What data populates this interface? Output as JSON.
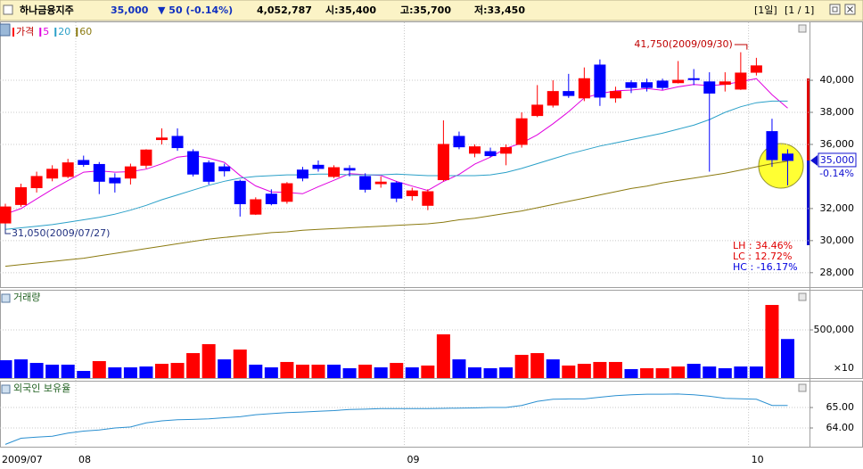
{
  "header": {
    "name": "하나금융지주",
    "price": "35,000",
    "change": "▼ 50 (-0.14%)",
    "volume": "4,052,787",
    "open": "시:35,400",
    "high": "고:35,700",
    "low": "저:33,450",
    "period": "[1일]",
    "page": "[1 / 1]"
  },
  "chart_data": [
    {
      "type": "candlestick",
      "name": "가격",
      "color_up": "#ff0000",
      "color_down": "#0000ff",
      "open": [
        31100,
        32250,
        33300,
        33900,
        34000,
        35000,
        34750,
        33900,
        33900,
        34700,
        36300,
        36500,
        35550,
        34850,
        34600,
        33700,
        31650,
        32900,
        32450,
        34400,
        34700,
        34000,
        34500,
        34000,
        33550,
        33600,
        32800,
        32200,
        33800,
        36500,
        35450,
        35550,
        35450,
        36000,
        37800,
        38450,
        39300,
        38900,
        40950,
        38900,
        39850,
        39850,
        39950,
        39850,
        40100,
        39900,
        39750,
        39450,
        40500,
        36800,
        35400
      ],
      "high": [
        32300,
        33550,
        34300,
        34700,
        35100,
        35300,
        34900,
        34200,
        34800,
        35700,
        37000,
        37000,
        35700,
        35000,
        34800,
        33800,
        32700,
        33200,
        33650,
        34600,
        35000,
        34700,
        34700,
        34200,
        34000,
        33700,
        33300,
        33200,
        37500,
        36800,
        36000,
        35800,
        36000,
        38000,
        39700,
        40000,
        40400,
        40800,
        41300,
        39600,
        40000,
        40100,
        40100,
        41200,
        40700,
        40500,
        40500,
        41750,
        41400,
        37600,
        35700
      ],
      "low": [
        31050,
        32100,
        33000,
        33700,
        33900,
        34600,
        32900,
        33000,
        33500,
        34500,
        36000,
        35600,
        34000,
        33500,
        34000,
        31500,
        31600,
        32200,
        32300,
        33700,
        34300,
        33900,
        34000,
        33000,
        33300,
        32400,
        32500,
        31900,
        33700,
        35700,
        35200,
        35200,
        34700,
        35800,
        37700,
        38300,
        38900,
        38700,
        38400,
        38600,
        39200,
        39300,
        39400,
        39800,
        39700,
        34300,
        39300,
        39400,
        40300,
        34600,
        33450
      ],
      "close": [
        32100,
        33300,
        34000,
        34450,
        34850,
        34750,
        33700,
        33600,
        34600,
        35650,
        36400,
        35800,
        34150,
        33700,
        34350,
        32300,
        32550,
        32300,
        33550,
        33900,
        34500,
        34550,
        34400,
        33200,
        33650,
        32650,
        33100,
        33050,
        36000,
        35850,
        35850,
        35300,
        35800,
        37600,
        38450,
        39300,
        39050,
        40100,
        38950,
        39300,
        39550,
        39550,
        39550,
        40000,
        40050,
        39200,
        39900,
        40450,
        40900,
        35050,
        35000
      ],
      "series": [
        {
          "name": "5",
          "color": "#e000e0",
          "values": [
            31650,
            32000,
            32600,
            33200,
            33740,
            34270,
            34350,
            34270,
            34300,
            34460,
            34790,
            35210,
            35320,
            35140,
            34880,
            34060,
            33410,
            33040,
            33010,
            32920,
            33360,
            33760,
            34180,
            34110,
            34060,
            33690,
            33400,
            33130,
            33690,
            34130,
            34770,
            35210,
            35760,
            36080,
            36600,
            37290,
            38040,
            38900,
            39170,
            39340,
            39390,
            39490,
            39380,
            39590,
            39740,
            39670,
            39740,
            39920,
            40100,
            39100,
            38260
          ]
        },
        {
          "name": "20",
          "color": "#2aa0c8",
          "values": [
            30700,
            30800,
            30900,
            31000,
            31150,
            31300,
            31450,
            31650,
            31900,
            32200,
            32550,
            32850,
            33150,
            33450,
            33700,
            33900,
            34000,
            34050,
            34100,
            34100,
            34150,
            34150,
            34100,
            34100,
            34100,
            34150,
            34100,
            34050,
            34050,
            34050,
            34050,
            34100,
            34250,
            34500,
            34800,
            35100,
            35400,
            35650,
            35900,
            36100,
            36300,
            36500,
            36700,
            36950,
            37200,
            37550,
            38000,
            38350,
            38600,
            38700,
            38700
          ]
        },
        {
          "name": "60",
          "color": "#8b7a10",
          "values": [
            28400,
            28500,
            28600,
            28700,
            28800,
            28900,
            29050,
            29200,
            29350,
            29500,
            29650,
            29800,
            29950,
            30100,
            30200,
            30300,
            30400,
            30500,
            30550,
            30650,
            30700,
            30750,
            30800,
            30850,
            30900,
            30950,
            31000,
            31050,
            31150,
            31300,
            31400,
            31550,
            31700,
            31850,
            32050,
            32250,
            32450,
            32650,
            32850,
            33050,
            33250,
            33400,
            33600,
            33750,
            33900,
            34050,
            34200,
            34400,
            34600,
            34800,
            34950
          ]
        }
      ],
      "ylim": [
        27100,
        43450
      ],
      "yticks": [
        {
          "value": 40000,
          "label": "40,000"
        },
        {
          "value": 38000,
          "label": "38,000"
        },
        {
          "value": 36000,
          "label": "36,000"
        },
        {
          "value": 32000,
          "label": "32,000"
        },
        {
          "value": 30000,
          "label": "30,000"
        },
        {
          "value": 28000,
          "label": "28,000"
        }
      ],
      "annotations": [
        {
          "value": 41750,
          "label": "41,750(2009/09/30)"
        },
        {
          "value": 31050,
          "label": "31,050(2009/07/27)"
        }
      ],
      "current": {
        "value": 35000,
        "label": "35,000",
        "change_label": "-0.14%"
      },
      "stats": [
        {
          "text": "LH :  34.46%",
          "color": "#e00000"
        },
        {
          "text": "LC :  12.72%",
          "color": "#e00000"
        },
        {
          "text": "HC : -16.17%",
          "color": "#0000e0"
        }
      ]
    },
    {
      "type": "bar",
      "name": "거래량",
      "values": [
        185000,
        194000,
        157000,
        139000,
        139000,
        74000,
        176000,
        111000,
        111000,
        120000,
        148000,
        157000,
        259000,
        352000,
        194000,
        296000,
        139000,
        111000,
        167000,
        139000,
        139000,
        139000,
        102000,
        139000,
        111000,
        157000,
        111000,
        130000,
        454000,
        194000,
        111000,
        102000,
        111000,
        241000,
        259000,
        194000,
        130000,
        148000,
        167000,
        167000,
        93000,
        102000,
        102000,
        120000,
        148000,
        120000,
        102000,
        120000,
        120000,
        759000,
        405279
      ],
      "colors": [
        "#0000ff",
        "#0000ff",
        "#0000ff",
        "#0000ff",
        "#0000ff",
        "#0000ff",
        "#ff0000",
        "#0000ff",
        "#0000ff",
        "#0000ff",
        "#ff0000",
        "#ff0000",
        "#ff0000",
        "#ff0000",
        "#0000ff",
        "#ff0000",
        "#0000ff",
        "#0000ff",
        "#ff0000",
        "#ff0000",
        "#ff0000",
        "#0000ff",
        "#0000ff",
        "#ff0000",
        "#0000ff",
        "#ff0000",
        "#0000ff",
        "#ff0000",
        "#ff0000",
        "#0000ff",
        "#0000ff",
        "#0000ff",
        "#0000ff",
        "#ff0000",
        "#ff0000",
        "#0000ff",
        "#ff0000",
        "#ff0000",
        "#ff0000",
        "#ff0000",
        "#0000ff",
        "#ff0000",
        "#ff0000",
        "#ff0000",
        "#0000ff",
        "#0000ff",
        "#0000ff",
        "#0000ff",
        "#0000ff",
        "#ff0000",
        "#0000ff"
      ],
      "ylim": [
        0,
        907400
      ],
      "yticks": [
        {
          "value": 500000,
          "label": "500,000"
        }
      ],
      "unit_label": "×10"
    },
    {
      "type": "line",
      "name": "외국인 보유율",
      "color": "#2a8fd0",
      "categories": [
        "2009/07",
        null,
        null,
        null,
        null,
        "08",
        null,
        null,
        null,
        null,
        null,
        null,
        null,
        null,
        null,
        null,
        null,
        null,
        null,
        null,
        null,
        null,
        null,
        null,
        null,
        null,
        "09",
        null,
        null,
        null,
        null,
        null,
        null,
        null,
        null,
        null,
        null,
        null,
        null,
        null,
        null,
        null,
        null,
        null,
        null,
        null,
        null,
        null,
        "10",
        null,
        null
      ],
      "values": [
        63.2,
        63.5,
        63.55,
        63.6,
        63.75,
        63.85,
        63.9,
        64,
        64.05,
        64.25,
        64.35,
        64.4,
        64.42,
        64.45,
        64.5,
        64.55,
        64.65,
        64.7,
        64.75,
        64.78,
        64.82,
        64.85,
        64.9,
        64.92,
        64.95,
        64.95,
        64.95,
        64.95,
        64.96,
        64.97,
        64.98,
        65,
        65,
        65.1,
        65.3,
        65.4,
        65.42,
        65.42,
        65.5,
        65.58,
        65.62,
        65.65,
        65.65,
        65.66,
        65.62,
        65.55,
        65.45,
        65.43,
        65.4,
        65.1,
        65.1
      ],
      "ylim": [
        63.13,
        66.22
      ],
      "yticks": [
        {
          "value": 65,
          "label": "65.00"
        },
        {
          "value": 64,
          "label": "64.00"
        }
      ]
    }
  ]
}
